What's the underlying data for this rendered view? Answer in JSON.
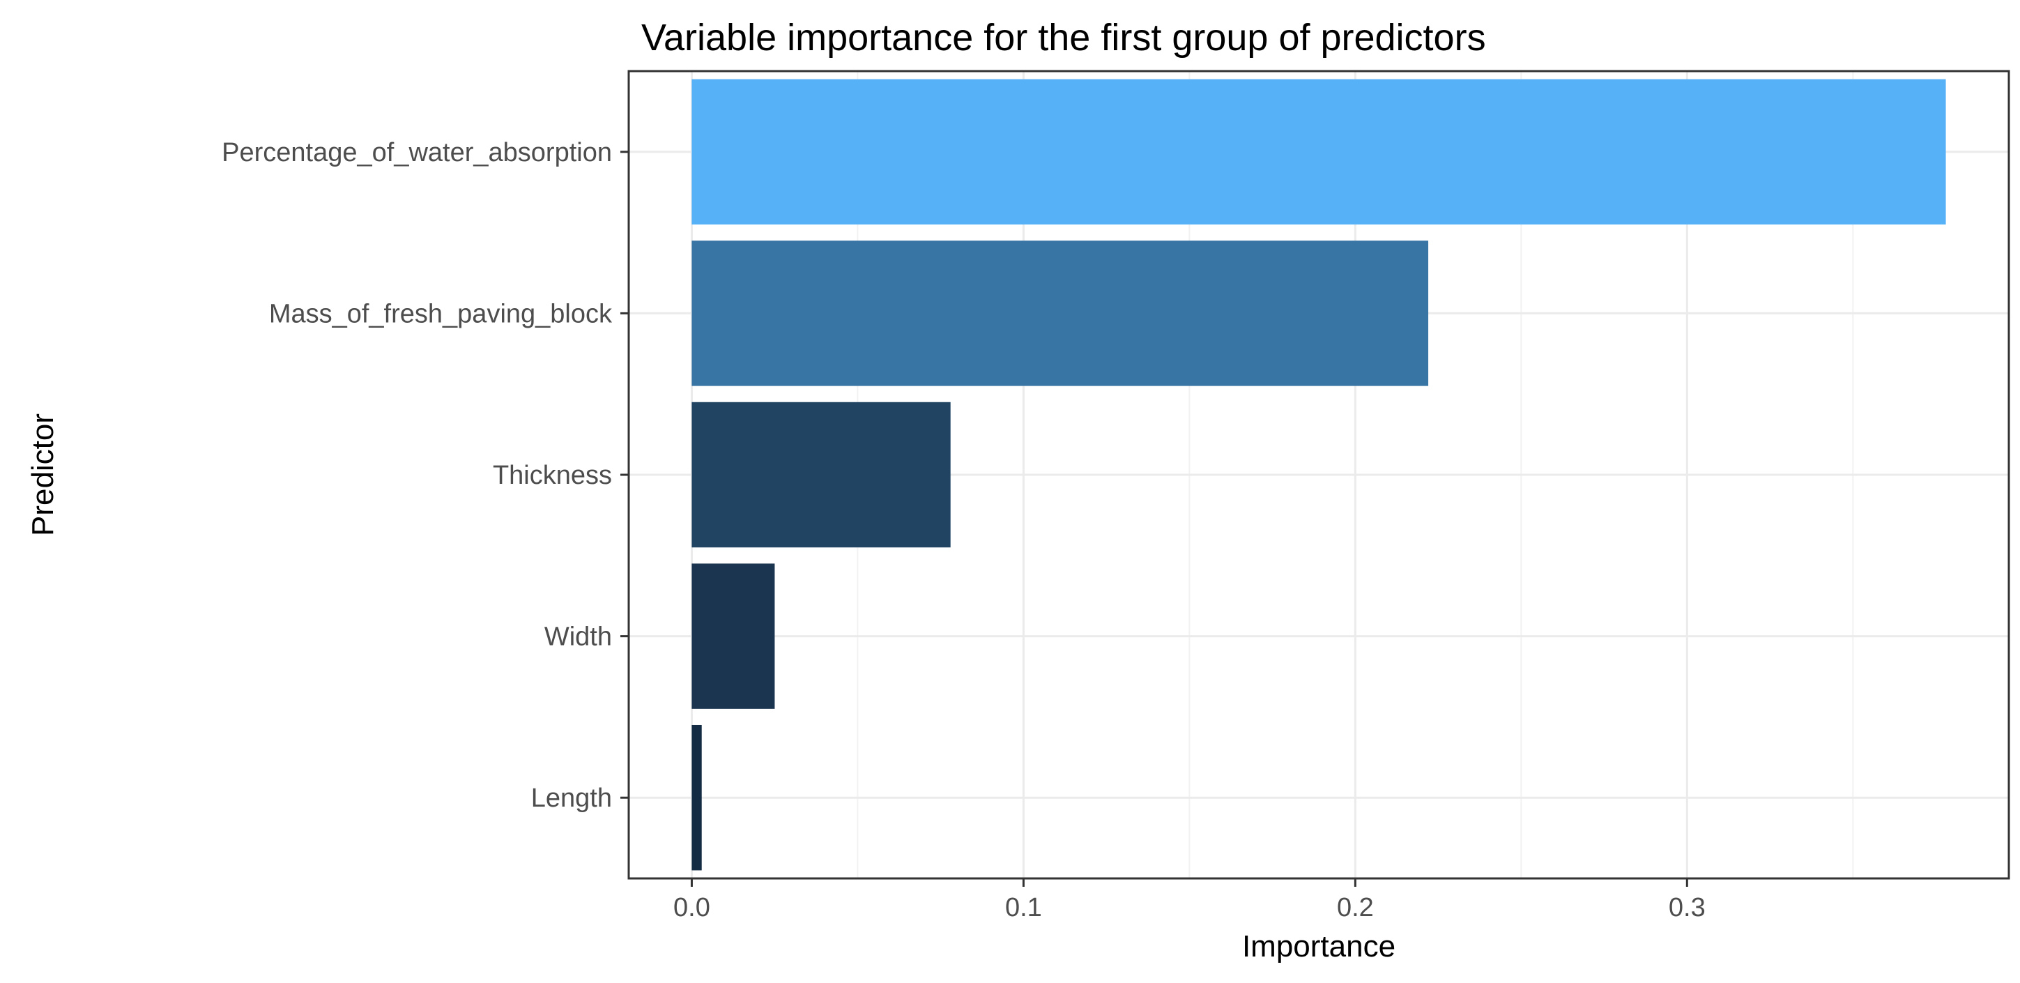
{
  "chart_data": {
    "type": "bar",
    "orientation": "horizontal",
    "title": "Variable importance for the first group of predictors",
    "xlabel": "Importance",
    "ylabel": "Predictor",
    "categories": [
      "Percentage_of_water_absorption",
      "Mass_of_fresh_paving_block",
      "Thickness",
      "Width",
      "Length"
    ],
    "values": [
      0.378,
      0.222,
      0.078,
      0.025,
      0.003
    ],
    "colors": [
      "#56b1f7",
      "#3875a5",
      "#214462",
      "#1b3550",
      "#132b43"
    ],
    "xlim": [
      -0.019,
      0.397
    ],
    "xticks": [
      0.0,
      0.1,
      0.2,
      0.3
    ],
    "xtick_labels": [
      "0.0",
      "0.1",
      "0.2",
      "0.3"
    ],
    "grid": true,
    "legend": "none"
  }
}
